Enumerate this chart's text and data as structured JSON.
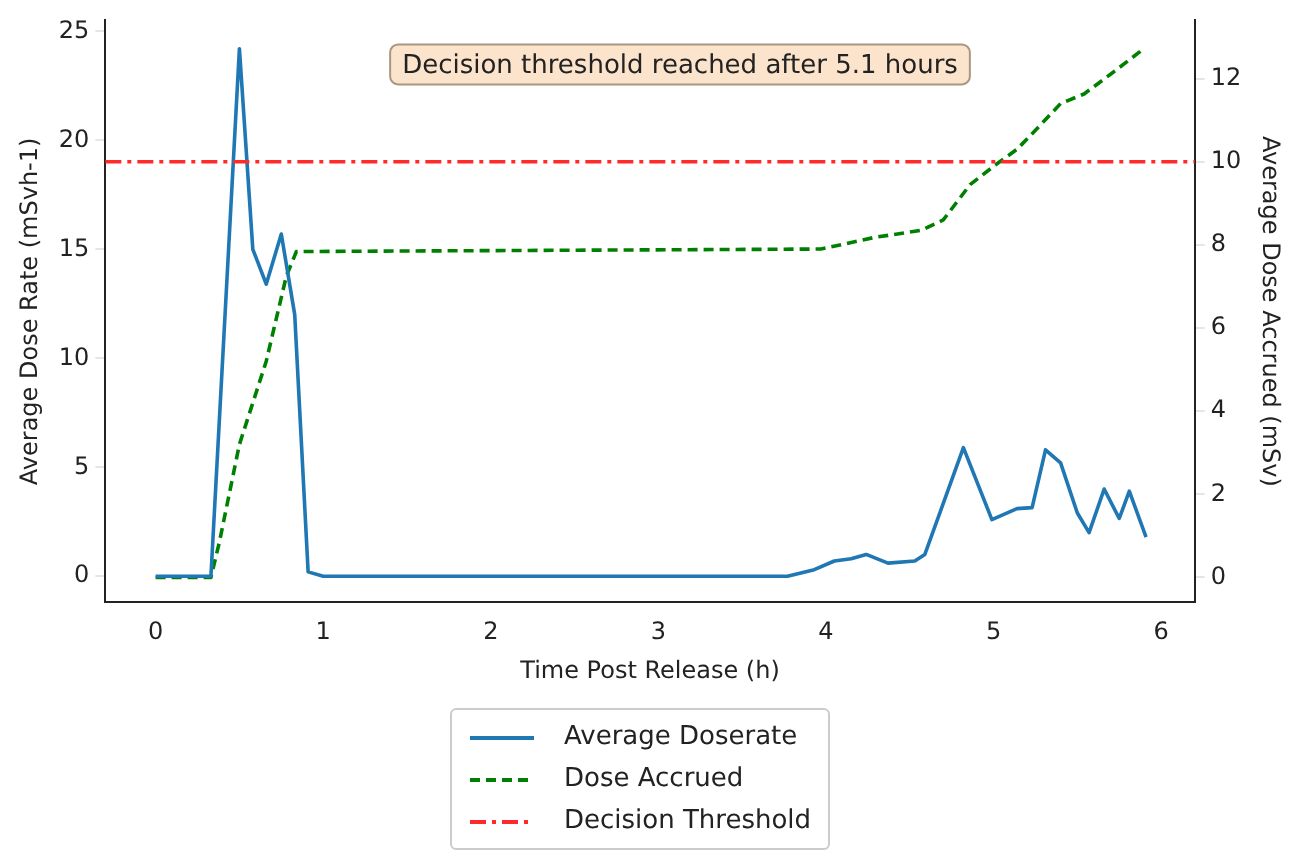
{
  "chart_data": {
    "type": "line",
    "xlabel": "Time Post Release (h)",
    "ylabel": "Average Dose Rate (mSvh-1)",
    "y2label": "Average Dose Accrued (mSv)",
    "annotations": [
      "Decision threshold reached after 5.1 hours"
    ],
    "xlim": [
      -0.3,
      6.2
    ],
    "xticks": [
      0,
      1,
      2,
      3,
      4,
      5,
      6
    ],
    "ylim": [
      -1.2,
      25.5
    ],
    "yticks": [
      0,
      5,
      10,
      15,
      20,
      25
    ],
    "y2lim": [
      -0.6,
      13.4
    ],
    "y2ticks": [
      0,
      2,
      4,
      6,
      8,
      10,
      12
    ],
    "grid": false,
    "legend": "bottom",
    "marker": "none",
    "series": [
      {
        "name": "Average Doserate",
        "color": "#1f77b4",
        "line_style": "solid",
        "x": [
          0,
          0.33,
          0.5,
          0.58,
          0.66,
          0.75,
          0.83,
          0.91,
          1.0,
          3.77,
          3.93,
          4.05,
          4.15,
          4.24,
          4.37,
          4.53,
          4.59,
          4.82,
          4.99,
          5.14,
          5.23,
          5.31,
          5.4,
          5.5,
          5.57,
          5.66,
          5.75,
          5.81,
          5.91
        ],
        "values": [
          0,
          0,
          24.2,
          15,
          13.4,
          15.7,
          12,
          0.2,
          0,
          0,
          0.3,
          0.7,
          0.8,
          1.0,
          0.6,
          0.7,
          1.0,
          5.9,
          2.6,
          3.1,
          3.15,
          5.8,
          5.2,
          2.9,
          2.0,
          4.0,
          2.65,
          3.9,
          1.8
        ]
      },
      {
        "name": "Dose Accrued",
        "color": "#008000",
        "line_style": "dashed",
        "axis": "y2",
        "x": [
          0,
          0.33,
          0.38,
          0.5,
          0.66,
          0.78,
          0.84,
          3.97,
          4.29,
          4.57,
          4.7,
          4.86,
          5.02,
          5.14,
          5.26,
          5.4,
          5.54,
          5.71,
          5.9
        ],
        "values": [
          0,
          0,
          0.84,
          3.2,
          5.2,
          7.25,
          7.84,
          7.9,
          8.18,
          8.35,
          8.6,
          9.45,
          9.95,
          10.3,
          10.8,
          11.4,
          11.63,
          12.14,
          12.73
        ]
      }
    ],
    "ref_lines": [
      {
        "axis": "y2",
        "value": 10,
        "label": "Decision Threshold",
        "color": "#ff2a2a",
        "line_style": "dashdot"
      }
    ]
  }
}
